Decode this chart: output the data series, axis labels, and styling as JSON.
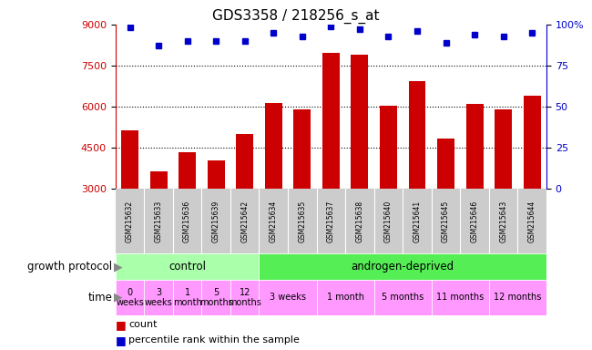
{
  "title": "GDS3358 / 218256_s_at",
  "samples": [
    "GSM215632",
    "GSM215633",
    "GSM215636",
    "GSM215639",
    "GSM215642",
    "GSM215634",
    "GSM215635",
    "GSM215637",
    "GSM215638",
    "GSM215640",
    "GSM215641",
    "GSM215645",
    "GSM215646",
    "GSM215643",
    "GSM215644"
  ],
  "counts": [
    5150,
    3650,
    4350,
    4050,
    5000,
    6150,
    5900,
    7950,
    7900,
    6050,
    6950,
    4850,
    6100,
    5900,
    6400
  ],
  "percentile_ranks": [
    98,
    87,
    90,
    90,
    90,
    95,
    93,
    99,
    97,
    93,
    96,
    89,
    94,
    93,
    95
  ],
  "ylim_left": [
    3000,
    9000
  ],
  "ylim_right": [
    0,
    100
  ],
  "yticks_left": [
    3000,
    4500,
    6000,
    7500,
    9000
  ],
  "yticks_right": [
    0,
    25,
    50,
    75,
    100
  ],
  "bar_color": "#cc0000",
  "dot_color": "#0000cc",
  "grid_color": "#000000",
  "bg_color": "#ffffff",
  "title_color": "#000000",
  "left_axis_color": "#cc0000",
  "right_axis_color": "#0000cc",
  "sample_bg_color": "#cccccc",
  "protocol_groups": [
    {
      "label": "control",
      "start": 0,
      "end": 5,
      "color": "#aaffaa"
    },
    {
      "label": "androgen-deprived",
      "start": 5,
      "end": 15,
      "color": "#55ee55"
    }
  ],
  "time_groups": [
    {
      "label": "0\nweeks",
      "start": 0,
      "end": 1
    },
    {
      "label": "3\nweeks",
      "start": 1,
      "end": 2
    },
    {
      "label": "1\nmonth",
      "start": 2,
      "end": 3
    },
    {
      "label": "5\nmonths",
      "start": 3,
      "end": 4
    },
    {
      "label": "12\nmonths",
      "start": 4,
      "end": 5
    },
    {
      "label": "3 weeks",
      "start": 5,
      "end": 7
    },
    {
      "label": "1 month",
      "start": 7,
      "end": 9
    },
    {
      "label": "5 months",
      "start": 9,
      "end": 11
    },
    {
      "label": "11 months",
      "start": 11,
      "end": 13
    },
    {
      "label": "12 months",
      "start": 13,
      "end": 15
    }
  ],
  "time_color": "#ff99ff",
  "legend_count_color": "#cc0000",
  "legend_percentile_color": "#0000cc",
  "growth_protocol_label": "growth protocol",
  "time_label": "time"
}
